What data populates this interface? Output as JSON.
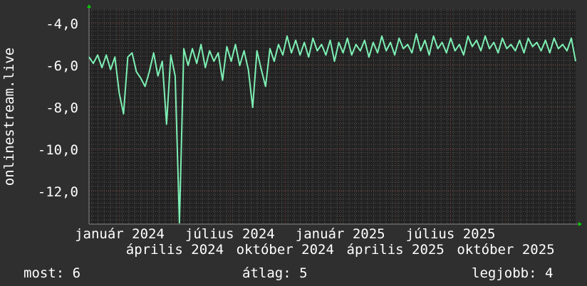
{
  "chart_data": {
    "type": "line",
    "ylabel": "onlinestream.live",
    "ylim": [
      -13.56,
      -3.32
    ],
    "yticks": [
      -4,
      -6,
      -8,
      -10,
      -12
    ],
    "ytick_labels": [
      "-4,0",
      "-6,0",
      "-8,0",
      "-10,0",
      "-12,0"
    ],
    "xtick_labels": [
      "január 2024",
      "április 2024",
      "július 2024",
      "október 2024",
      "január 2025",
      "április 2025",
      "július 2025",
      "október 2025"
    ],
    "grid": true,
    "colors": {
      "line": "#7df0b4",
      "plot_bg": "#222222",
      "bg": "#2f2f2f",
      "grid_minor": "#555555",
      "grid_major": "#7a3a3a",
      "arrow": "#00cc00"
    },
    "values": [
      -5.6,
      -5.9,
      -5.5,
      -6.1,
      -5.5,
      -6.2,
      -5.6,
      -7.3,
      -8.3,
      -5.6,
      -5.4,
      -6.3,
      -6.6,
      -7.0,
      -6.3,
      -5.4,
      -6.5,
      -5.8,
      -8.8,
      -5.5,
      -6.5,
      -13.5,
      -5.2,
      -6.0,
      -5.2,
      -5.9,
      -5.0,
      -6.1,
      -5.3,
      -5.8,
      -5.4,
      -6.7,
      -5.1,
      -5.8,
      -5.0,
      -6.0,
      -5.3,
      -6.2,
      -8.0,
      -5.3,
      -6.2,
      -7.0,
      -5.2,
      -5.8,
      -5.0,
      -5.5,
      -4.6,
      -5.4,
      -4.8,
      -5.5,
      -4.9,
      -5.6,
      -4.7,
      -5.3,
      -5.0,
      -5.5,
      -4.8,
      -5.8,
      -4.9,
      -5.4,
      -4.7,
      -5.5,
      -5.0,
      -5.3,
      -4.8,
      -5.6,
      -4.9,
      -5.4,
      -4.6,
      -5.3,
      -4.9,
      -5.5,
      -4.7,
      -5.2,
      -5.0,
      -5.4,
      -4.5,
      -5.3,
      -4.8,
      -5.5,
      -4.6,
      -5.2,
      -4.9,
      -5.4,
      -4.7,
      -5.3,
      -5.0,
      -5.5,
      -4.6,
      -5.1,
      -4.8,
      -5.3,
      -4.6,
      -5.2,
      -4.9,
      -5.4,
      -4.7,
      -5.2,
      -5.0,
      -5.3,
      -4.8,
      -5.4,
      -4.7,
      -5.1,
      -4.9,
      -5.3,
      -4.8,
      -5.4,
      -4.7,
      -5.2,
      -5.0,
      -5.3,
      -4.7,
      -5.8
    ]
  },
  "legend": {
    "current": "most: 6",
    "average": "átlag: 5",
    "best": "legjobb: 4"
  }
}
